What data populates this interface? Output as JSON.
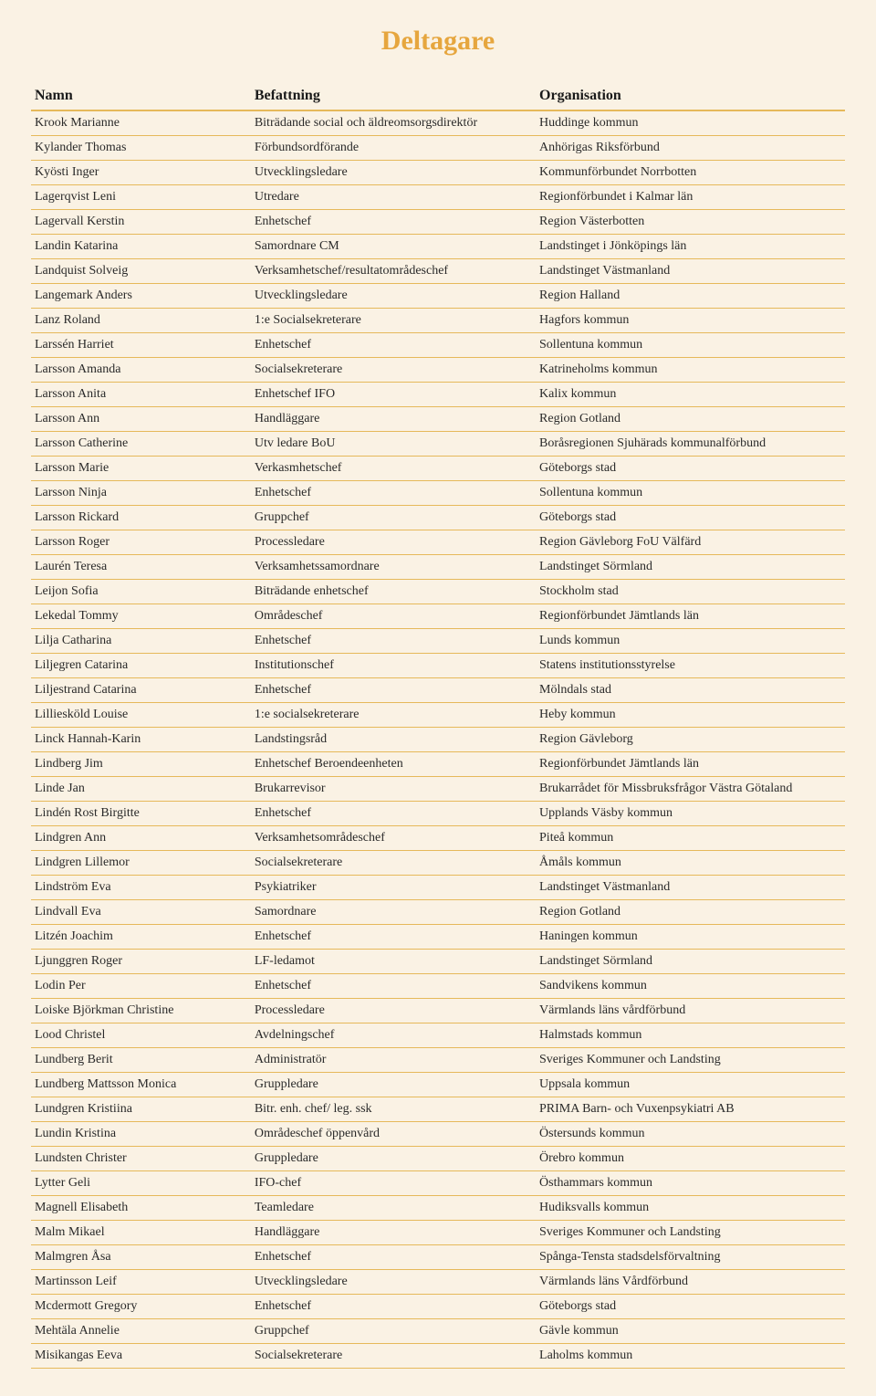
{
  "title": "Deltagare",
  "columns": [
    "Namn",
    "Befattning",
    "Organisation"
  ],
  "rows": [
    [
      "Krook Marianne",
      "Biträdande social och äldreomsorgsdirektör",
      "Huddinge kommun"
    ],
    [
      "Kylander Thomas",
      "Förbundsordförande",
      "Anhörigas Riksförbund"
    ],
    [
      "Kyösti Inger",
      "Utvecklingsledare",
      "Kommunförbundet Norrbotten"
    ],
    [
      "Lagerqvist Leni",
      "Utredare",
      "Regionförbundet i Kalmar län"
    ],
    [
      "Lagervall Kerstin",
      "Enhetschef",
      "Region Västerbotten"
    ],
    [
      "Landin Katarina",
      "Samordnare CM",
      "Landstinget i Jönköpings län"
    ],
    [
      "Landquist Solveig",
      "Verksamhetschef/resultatområdeschef",
      "Landstinget Västmanland"
    ],
    [
      "Langemark Anders",
      "Utvecklingsledare",
      "Region Halland"
    ],
    [
      "Lanz Roland",
      "1:e Socialsekreterare",
      "Hagfors kommun"
    ],
    [
      "Larssén Harriet",
      "Enhetschef",
      "Sollentuna kommun"
    ],
    [
      "Larsson Amanda",
      "Socialsekreterare",
      "Katrineholms kommun"
    ],
    [
      "Larsson Anita",
      "Enhetschef IFO",
      "Kalix kommun"
    ],
    [
      "Larsson Ann",
      "Handläggare",
      "Region Gotland"
    ],
    [
      "Larsson Catherine",
      "Utv ledare BoU",
      "Boråsregionen Sjuhärads kommunalförbund"
    ],
    [
      "Larsson Marie",
      "Verkasmhetschef",
      "Göteborgs stad"
    ],
    [
      "Larsson Ninja",
      "Enhetschef",
      "Sollentuna kommun"
    ],
    [
      "Larsson Rickard",
      "Gruppchef",
      "Göteborgs stad"
    ],
    [
      "Larsson Roger",
      "Processledare",
      "Region Gävleborg FoU Välfärd"
    ],
    [
      "Laurén Teresa",
      "Verksamhetssamordnare",
      "Landstinget Sörmland"
    ],
    [
      "Leijon Sofia",
      "Biträdande enhetschef",
      "Stockholm stad"
    ],
    [
      "Lekedal Tommy",
      "Områdeschef",
      "Regionförbundet Jämtlands län"
    ],
    [
      "Lilja Catharina",
      "Enhetschef",
      "Lunds kommun"
    ],
    [
      "Liljegren Catarina",
      "Institutionschef",
      "Statens institutionsstyrelse"
    ],
    [
      "Liljestrand Catarina",
      "Enhetschef",
      "Mölndals stad"
    ],
    [
      "Lilliesköld Louise",
      "1:e socialsekreterare",
      "Heby kommun"
    ],
    [
      "Linck Hannah-Karin",
      "Landstingsråd",
      "Region Gävleborg"
    ],
    [
      "Lindberg Jim",
      "Enhetschef Beroendeenheten",
      "Regionförbundet Jämtlands län"
    ],
    [
      "Linde Jan",
      "Brukarrevisor",
      "Brukarrådet för Missbruksfrågor Västra Götaland"
    ],
    [
      "Lindén Rost Birgitte",
      "Enhetschef",
      "Upplands Väsby kommun"
    ],
    [
      "Lindgren Ann",
      "Verksamhetsområdeschef",
      "Piteå kommun"
    ],
    [
      "Lindgren Lillemor",
      "Socialsekreterare",
      "Åmåls kommun"
    ],
    [
      "Lindström Eva",
      "Psykiatriker",
      "Landstinget Västmanland"
    ],
    [
      "Lindvall Eva",
      "Samordnare",
      "Region Gotland"
    ],
    [
      "Litzén Joachim",
      "Enhetschef",
      "Haningen kommun"
    ],
    [
      "Ljunggren Roger",
      "LF-ledamot",
      "Landstinget Sörmland"
    ],
    [
      "Lodin Per",
      "Enhetschef",
      "Sandvikens kommun"
    ],
    [
      "Loiske Björkman Christine",
      "Processledare",
      "Värmlands läns vårdförbund"
    ],
    [
      "Lood Christel",
      "Avdelningschef",
      "Halmstads kommun"
    ],
    [
      "Lundberg Berit",
      "Administratör",
      "Sveriges Kommuner och Landsting"
    ],
    [
      "Lundberg Mattsson Monica",
      "Gruppledare",
      "Uppsala kommun"
    ],
    [
      "Lundgren Kristiina",
      "Bitr. enh. chef/ leg. ssk",
      "PRIMA Barn- och Vuxenpsykiatri AB"
    ],
    [
      "Lundin Kristina",
      "Områdeschef öppenvård",
      "Östersunds kommun"
    ],
    [
      "Lundsten Christer",
      "Gruppledare",
      "Örebro kommun"
    ],
    [
      "Lytter Geli",
      "IFO-chef",
      "Östhammars kommun"
    ],
    [
      "Magnell Elisabeth",
      "Teamledare",
      "Hudiksvalls kommun"
    ],
    [
      "Malm Mikael",
      "Handläggare",
      "Sveriges Kommuner och Landsting"
    ],
    [
      "Malmgren Åsa",
      "Enhetschef",
      "Spånga-Tensta stadsdelsförvaltning"
    ],
    [
      "Martinsson Leif",
      "Utvecklingsledare",
      "Värmlands läns Vårdförbund"
    ],
    [
      "Mcdermott Gregory",
      "Enhetschef",
      "Göteborgs stad"
    ],
    [
      "Mehtäla Annelie",
      "Gruppchef",
      "Gävle kommun"
    ],
    [
      "Misikangas Eeva",
      "Socialsekreterare",
      "Laholms kommun"
    ]
  ]
}
